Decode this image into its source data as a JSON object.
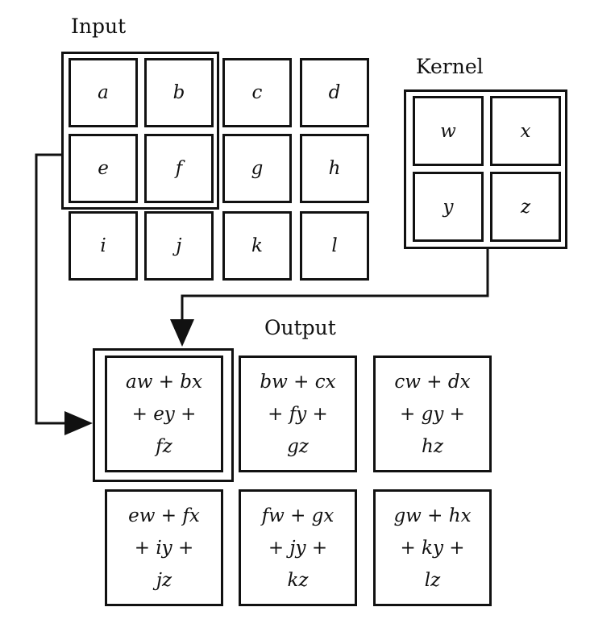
{
  "labels": {
    "input": "Input",
    "kernel": "Kernel",
    "output": "Output"
  },
  "input": {
    "rows": [
      [
        "a",
        "b",
        "c",
        "d"
      ],
      [
        "e",
        "f",
        "g",
        "h"
      ],
      [
        "i",
        "j",
        "k",
        "l"
      ]
    ]
  },
  "kernel": {
    "rows": [
      [
        "w",
        "x"
      ],
      [
        "y",
        "z"
      ]
    ]
  },
  "output": {
    "rows": [
      [
        {
          "lines": [
            "aw + bx",
            "+ ey +",
            "fz"
          ]
        },
        {
          "lines": [
            "bw + cx",
            "+ fy +",
            "gz"
          ]
        },
        {
          "lines": [
            "cw + dx",
            "+ gy +",
            "hz"
          ]
        }
      ],
      [
        {
          "lines": [
            "ew + fx",
            "+ iy +",
            "jz"
          ]
        },
        {
          "lines": [
            "fw + gx",
            "+ jy +",
            "kz"
          ]
        },
        {
          "lines": [
            "gw + hx",
            "+ ky +",
            "lz"
          ]
        }
      ]
    ]
  }
}
